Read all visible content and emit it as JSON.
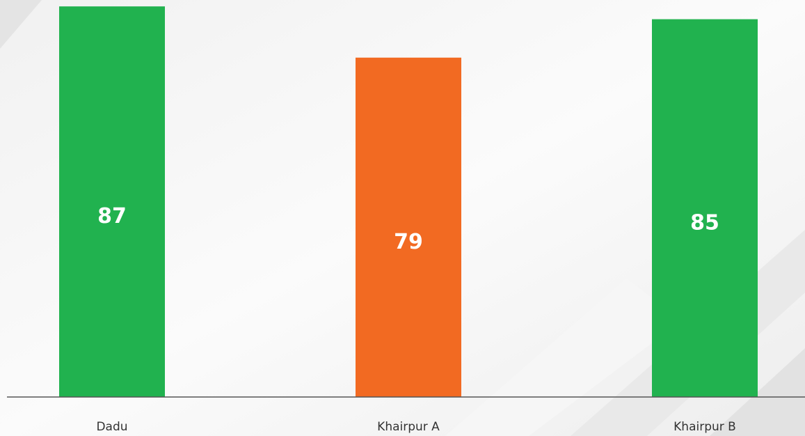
{
  "chart_data": {
    "type": "bar",
    "categories": [
      "Dadu",
      "Khairpur A",
      "Khairpur B"
    ],
    "values": [
      87,
      79,
      85
    ],
    "colors": [
      "#21b24f",
      "#f26a22",
      "#21b24f"
    ],
    "ylim": [
      26,
      88
    ]
  }
}
